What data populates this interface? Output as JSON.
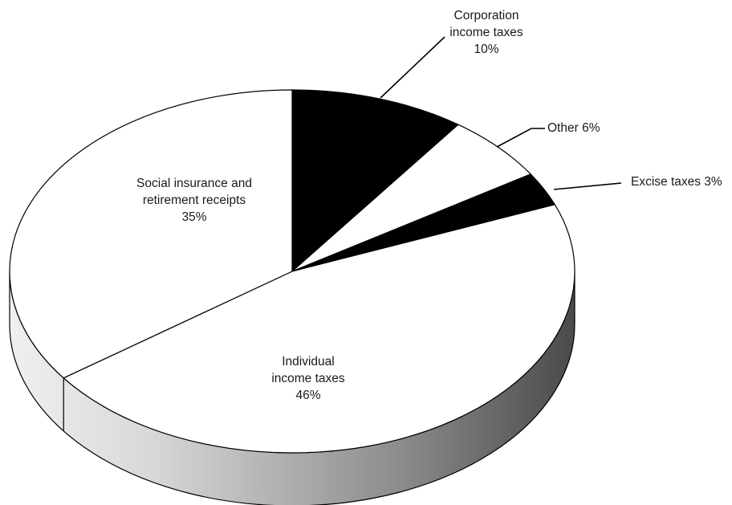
{
  "chart_data": {
    "type": "pie",
    "three_d": true,
    "start": "top",
    "direction": "clockwise",
    "legend": "none",
    "slices": [
      {
        "key": "corp",
        "lines": [
          "Corporation",
          "income taxes",
          "10%"
        ],
        "value": 10,
        "color": "#000000"
      },
      {
        "key": "other",
        "lines": [
          "Other 6%"
        ],
        "value": 6,
        "color": "#ffffff"
      },
      {
        "key": "excise",
        "lines": [
          "Excise taxes 3%"
        ],
        "value": 3,
        "color": "#000000"
      },
      {
        "key": "individual",
        "lines": [
          "Individual",
          "income taxes",
          "46%"
        ],
        "value": 46,
        "color": "#ffffff"
      },
      {
        "key": "social",
        "lines": [
          "Social insurance and",
          "retirement receipts",
          "35%"
        ],
        "value": 35,
        "color": "#ffffff"
      }
    ],
    "side_gradient": [
      "#f0f0f0",
      "#d8d8d8",
      "#8a8a8a",
      "#4a4a4a"
    ]
  }
}
